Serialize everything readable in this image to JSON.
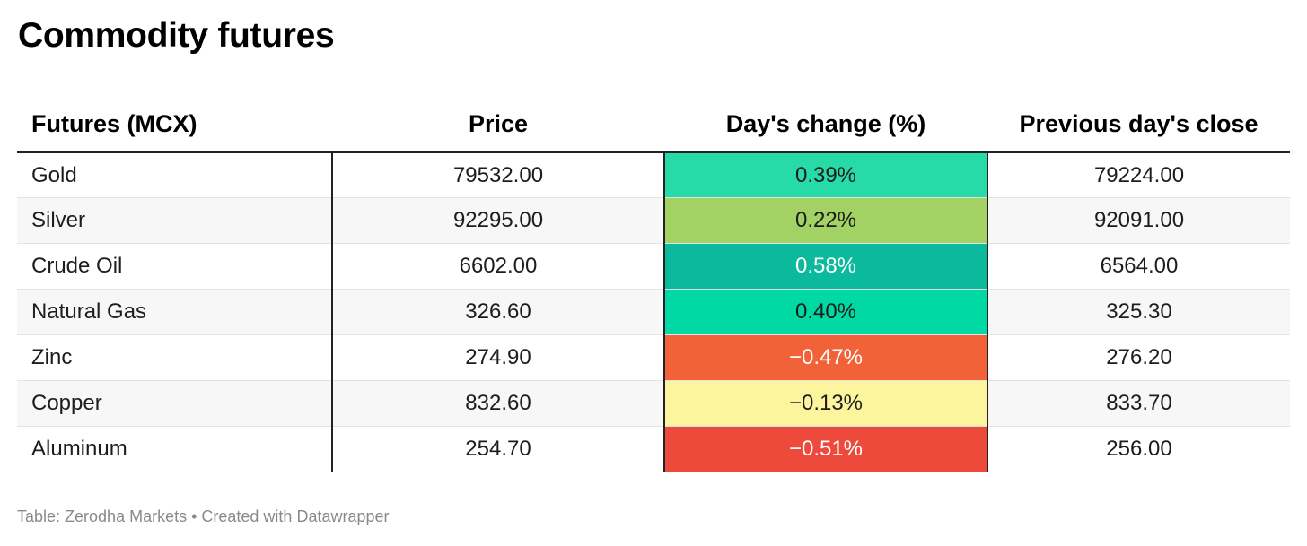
{
  "title": "Commodity futures",
  "footer": "Table: Zerodha Markets • Created with Datawrapper",
  "chart_data": {
    "type": "table",
    "title": "Commodity futures",
    "columns": [
      "Futures (MCX)",
      "Price",
      "Day's change (%)",
      "Previous day's close"
    ],
    "rows": [
      {
        "name": "Gold",
        "price": "79532.00",
        "change": "0.39%",
        "change_value": 0.39,
        "prev_close": "79224.00",
        "cell_color": "#26dba7",
        "text_color": "#1d1d1d"
      },
      {
        "name": "Silver",
        "price": "92295.00",
        "change": "0.22%",
        "change_value": 0.22,
        "prev_close": "92091.00",
        "cell_color": "#a2d263",
        "text_color": "#1d1d1d"
      },
      {
        "name": "Crude Oil",
        "price": "6602.00",
        "change": "0.58%",
        "change_value": 0.58,
        "prev_close": "6564.00",
        "cell_color": "#0bb99d",
        "text_color": "#ffffff"
      },
      {
        "name": "Natural Gas",
        "price": "326.60",
        "change": "0.40%",
        "change_value": 0.4,
        "prev_close": "325.30",
        "cell_color": "#00d9a4",
        "text_color": "#1d1d1d"
      },
      {
        "name": "Zinc",
        "price": "274.90",
        "change": "−0.47%",
        "change_value": -0.47,
        "prev_close": "276.20",
        "cell_color": "#f26239",
        "text_color": "#ffffff"
      },
      {
        "name": "Copper",
        "price": "832.60",
        "change": "−0.13%",
        "change_value": -0.13,
        "prev_close": "833.70",
        "cell_color": "#fdf59d",
        "text_color": "#1d1d1d"
      },
      {
        "name": "Aluminum",
        "price": "254.70",
        "change": "−0.51%",
        "change_value": -0.51,
        "prev_close": "256.00",
        "cell_color": "#ee4a3c",
        "text_color": "#ffffff"
      }
    ]
  }
}
